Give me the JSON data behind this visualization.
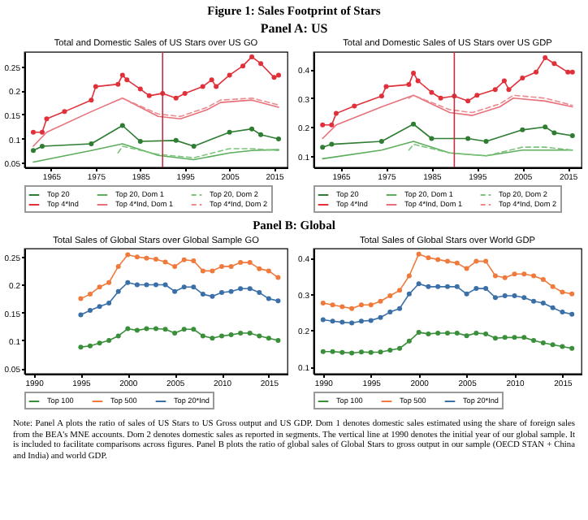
{
  "chart_data": [
    {
      "type": "other",
      "title": "Figure 1: Sales Footprint of Stars",
      "subtitle": "Panel A: US"
    },
    {
      "type": "line",
      "title": "Total and Domestic Sales of US Stars over US GO",
      "xlim": [
        1959,
        2018
      ],
      "xticks": [
        1965,
        1975,
        1985,
        1995,
        2005,
        2015
      ],
      "ylim": [
        0.04,
        0.28
      ],
      "yticks": [
        0.05,
        0.1,
        0.15,
        0.2,
        0.25
      ],
      "grid": false,
      "legend": "bottom",
      "ref_lines": [
        {
          "axis": "x",
          "value": 1990,
          "color": "#c03040"
        }
      ],
      "series": [
        {
          "name": "Top 20",
          "color": "#2e7d32",
          "marker": "circle",
          "line_style": "solid",
          "x": [
            1961,
            1963,
            1974,
            1981,
            1985,
            1993,
            1997,
            2005,
            2010,
            2012,
            2016
          ],
          "values": [
            0.075,
            0.084,
            0.089,
            0.127,
            0.094,
            0.096,
            0.084,
            0.113,
            0.12,
            0.108,
            0.099
          ]
        },
        {
          "name": "Top 20, Dom 1",
          "color": "#5cae5c",
          "marker": "none",
          "line_style": "solid",
          "x": [
            1961,
            1974,
            1981,
            1989,
            1997,
            2005,
            2010,
            2016
          ],
          "values": [
            0.051,
            0.075,
            0.089,
            0.065,
            0.056,
            0.07,
            0.075,
            0.077
          ]
        },
        {
          "name": "Top 20, Dom 2",
          "color": "#7cc47c",
          "marker": "none",
          "line_style": "dashed",
          "x": [
            1980,
            1981,
            1989,
            1997,
            2005,
            2010,
            2016
          ],
          "values": [
            0.07,
            0.084,
            0.067,
            0.06,
            0.079,
            0.079,
            0.075
          ]
        },
        {
          "name": "Top 4*Ind",
          "color": "#e0303a",
          "marker": "circle",
          "line_style": "solid",
          "x": [
            1961,
            1963,
            1964,
            1968,
            1974,
            1975,
            1980,
            1981,
            1982,
            1985,
            1987,
            1990,
            1993,
            1995,
            1999,
            2001,
            2002,
            2005,
            2008,
            2010,
            2012,
            2015,
            2016
          ],
          "values": [
            0.113,
            0.113,
            0.141,
            0.156,
            0.18,
            0.208,
            0.213,
            0.232,
            0.222,
            0.203,
            0.189,
            0.194,
            0.184,
            0.194,
            0.208,
            0.222,
            0.208,
            0.232,
            0.251,
            0.27,
            0.256,
            0.227,
            0.232
          ]
        },
        {
          "name": "Top 4*Ind, Dom 1",
          "color": "#e8707a",
          "marker": "none",
          "line_style": "solid",
          "x": [
            1961,
            1964,
            1974,
            1981,
            1989,
            1994,
            2000,
            2003,
            2010,
            2016
          ],
          "values": [
            0.084,
            0.113,
            0.156,
            0.184,
            0.146,
            0.141,
            0.16,
            0.175,
            0.18,
            0.165
          ]
        },
        {
          "name": "Top 4*Ind, Dom 2",
          "color": "#ec8a90",
          "marker": "none",
          "line_style": "dashed",
          "x": [
            1980,
            1981,
            1989,
            1994,
            2000,
            2003,
            2010,
            2016
          ],
          "values": [
            0.18,
            0.184,
            0.151,
            0.146,
            0.165,
            0.18,
            0.184,
            0.17
          ]
        }
      ]
    },
    {
      "type": "line",
      "title": "Total and Domestic Sales of US Stars over US GDP",
      "xlim": [
        1959,
        2018
      ],
      "xticks": [
        1965,
        1975,
        1985,
        1995,
        2005,
        2015
      ],
      "ylim": [
        0.06,
        0.46
      ],
      "yticks": [
        0.1,
        0.2,
        0.3,
        0.4
      ],
      "grid": false,
      "legend": "bottom",
      "ref_lines": [
        {
          "axis": "x",
          "value": 1990,
          "color": "#c03040"
        }
      ],
      "series": [
        {
          "name": "Top 20",
          "color": "#2e7d32",
          "marker": "circle",
          "line_style": "solid",
          "x": [
            1961,
            1963,
            1974,
            1981,
            1985,
            1993,
            1997,
            2005,
            2010,
            2012,
            2016
          ],
          "values": [
            0.13,
            0.14,
            0.15,
            0.21,
            0.16,
            0.16,
            0.15,
            0.19,
            0.2,
            0.18,
            0.17
          ]
        },
        {
          "name": "Top 20, Dom 1",
          "color": "#5cae5c",
          "marker": "none",
          "line_style": "solid",
          "x": [
            1961,
            1974,
            1981,
            1989,
            1997,
            2005,
            2010,
            2016
          ],
          "values": [
            0.09,
            0.12,
            0.15,
            0.11,
            0.1,
            0.12,
            0.12,
            0.12
          ]
        },
        {
          "name": "Top 20, Dom 2",
          "color": "#7cc47c",
          "marker": "none",
          "line_style": "dashed",
          "x": [
            1980,
            1981,
            1989,
            1997,
            2005,
            2010,
            2016
          ],
          "values": [
            0.12,
            0.14,
            0.11,
            0.1,
            0.13,
            0.13,
            0.12
          ]
        },
        {
          "name": "Top 4*Ind",
          "color": "#e0303a",
          "marker": "circle",
          "line_style": "solid",
          "x": [
            1961,
            1963,
            1964,
            1968,
            1974,
            1975,
            1980,
            1981,
            1982,
            1985,
            1987,
            1990,
            1993,
            1995,
            1999,
            2001,
            2002,
            2005,
            2008,
            2010,
            2012,
            2015,
            2016
          ],
          "values": [
            0.207,
            0.207,
            0.247,
            0.273,
            0.307,
            0.34,
            0.347,
            0.387,
            0.36,
            0.32,
            0.3,
            0.307,
            0.29,
            0.31,
            0.33,
            0.36,
            0.33,
            0.37,
            0.39,
            0.44,
            0.42,
            0.39,
            0.39
          ]
        },
        {
          "name": "Top 4*Ind, Dom 1",
          "color": "#e8707a",
          "marker": "none",
          "line_style": "solid",
          "x": [
            1961,
            1964,
            1974,
            1981,
            1989,
            1994,
            2000,
            2003,
            2010,
            2016
          ],
          "values": [
            0.16,
            0.207,
            0.27,
            0.31,
            0.25,
            0.24,
            0.27,
            0.3,
            0.29,
            0.27
          ]
        },
        {
          "name": "Top 4*Ind, Dom 2",
          "color": "#ec8a90",
          "marker": "none",
          "line_style": "dashed",
          "x": [
            1980,
            1981,
            1989,
            1994,
            2000,
            2003,
            2010,
            2016
          ],
          "values": [
            0.3,
            0.31,
            0.26,
            0.25,
            0.28,
            0.31,
            0.3,
            0.275
          ]
        }
      ]
    },
    {
      "type": "other",
      "title": "Panel B: Global"
    },
    {
      "type": "line",
      "title": "Total Sales of Global Stars over Global Sample GO",
      "x": [
        1995,
        1996,
        1997,
        1998,
        1999,
        2000,
        2001,
        2002,
        2003,
        2004,
        2005,
        2006,
        2007,
        2008,
        2009,
        2010,
        2011,
        2012,
        2013,
        2014,
        2015,
        2016
      ],
      "xlim": [
        1989,
        2017
      ],
      "xticks": [
        1990,
        1995,
        2000,
        2005,
        2010,
        2015
      ],
      "ylim": [
        0.04,
        0.265
      ],
      "yticks": [
        0.05,
        0.1,
        0.15,
        0.2,
        0.25
      ],
      "grid": false,
      "legend": "bottom",
      "marker": "circle",
      "line_style": "solid",
      "series": [
        {
          "name": "Top 100",
          "color": "#3a8f3a",
          "values": [
            0.088,
            0.09,
            0.095,
            0.1,
            0.108,
            0.121,
            0.118,
            0.121,
            0.121,
            0.12,
            0.113,
            0.12,
            0.12,
            0.108,
            0.104,
            0.108,
            0.11,
            0.113,
            0.113,
            0.108,
            0.104,
            0.1
          ]
        },
        {
          "name": "Top 500",
          "color": "#f07a3c",
          "values": [
            0.175,
            0.183,
            0.196,
            0.204,
            0.233,
            0.254,
            0.25,
            0.248,
            0.246,
            0.241,
            0.233,
            0.245,
            0.243,
            0.225,
            0.225,
            0.233,
            0.233,
            0.24,
            0.24,
            0.229,
            0.225,
            0.213
          ]
        },
        {
          "name": "Top 20*Ind",
          "color": "#3a6fa8",
          "values": [
            0.146,
            0.154,
            0.161,
            0.167,
            0.188,
            0.204,
            0.2,
            0.2,
            0.2,
            0.2,
            0.188,
            0.196,
            0.196,
            0.183,
            0.179,
            0.186,
            0.188,
            0.193,
            0.193,
            0.186,
            0.175,
            0.171
          ]
        }
      ]
    },
    {
      "type": "line",
      "title": "Total Sales of Global Stars over World GDP",
      "x": [
        1990,
        1991,
        1992,
        1993,
        1994,
        1995,
        1996,
        1997,
        1998,
        1999,
        2000,
        2001,
        2002,
        2003,
        2004,
        2005,
        2006,
        2007,
        2008,
        2009,
        2010,
        2011,
        2012,
        2013,
        2014,
        2015,
        2016
      ],
      "xlim": [
        1989,
        2017
      ],
      "xticks": [
        1990,
        1995,
        2000,
        2005,
        2010,
        2015
      ],
      "ylim": [
        0.08,
        0.425
      ],
      "yticks": [
        0.1,
        0.2,
        0.3,
        0.4
      ],
      "grid": false,
      "legend": "bottom",
      "marker": "circle",
      "line_style": "solid",
      "series": [
        {
          "name": "Top 100",
          "color": "#3a8f3a",
          "values": [
            0.141,
            0.141,
            0.139,
            0.137,
            0.14,
            0.139,
            0.14,
            0.145,
            0.15,
            0.17,
            0.194,
            0.19,
            0.192,
            0.192,
            0.192,
            0.185,
            0.192,
            0.19,
            0.178,
            0.18,
            0.18,
            0.18,
            0.172,
            0.165,
            0.16,
            0.155,
            0.15
          ]
        },
        {
          "name": "Top 500",
          "color": "#f07a3c",
          "values": [
            0.275,
            0.27,
            0.265,
            0.26,
            0.27,
            0.27,
            0.28,
            0.295,
            0.31,
            0.35,
            0.41,
            0.4,
            0.395,
            0.39,
            0.385,
            0.37,
            0.39,
            0.39,
            0.35,
            0.345,
            0.355,
            0.355,
            0.35,
            0.34,
            0.32,
            0.305,
            0.3
          ]
        },
        {
          "name": "Top 20*Ind",
          "color": "#3a6fa8",
          "values": [
            0.229,
            0.225,
            0.222,
            0.22,
            0.225,
            0.227,
            0.235,
            0.25,
            0.26,
            0.3,
            0.328,
            0.32,
            0.32,
            0.32,
            0.32,
            0.3,
            0.315,
            0.315,
            0.29,
            0.295,
            0.295,
            0.29,
            0.28,
            0.275,
            0.262,
            0.25,
            0.244
          ]
        }
      ]
    },
    {
      "type": "other",
      "annotations": [
        "Note: Panel A plots the ratio of sales of US Stars to US Gross output and US GDP. Dom 1 denotes domestic sales estimated using the share of foreign sales from the BEA's MNE accounts. Dom 2 denotes domestic sales as reported in segments. The vertical line at 1990 denotes the initial year of our global sample. It is included to facilitate comparisons across figures. Panel B plots the ratio of global sales of Global Stars to gross output in our sample (OECD STAN + China and India) and world GDP."
      ]
    }
  ]
}
